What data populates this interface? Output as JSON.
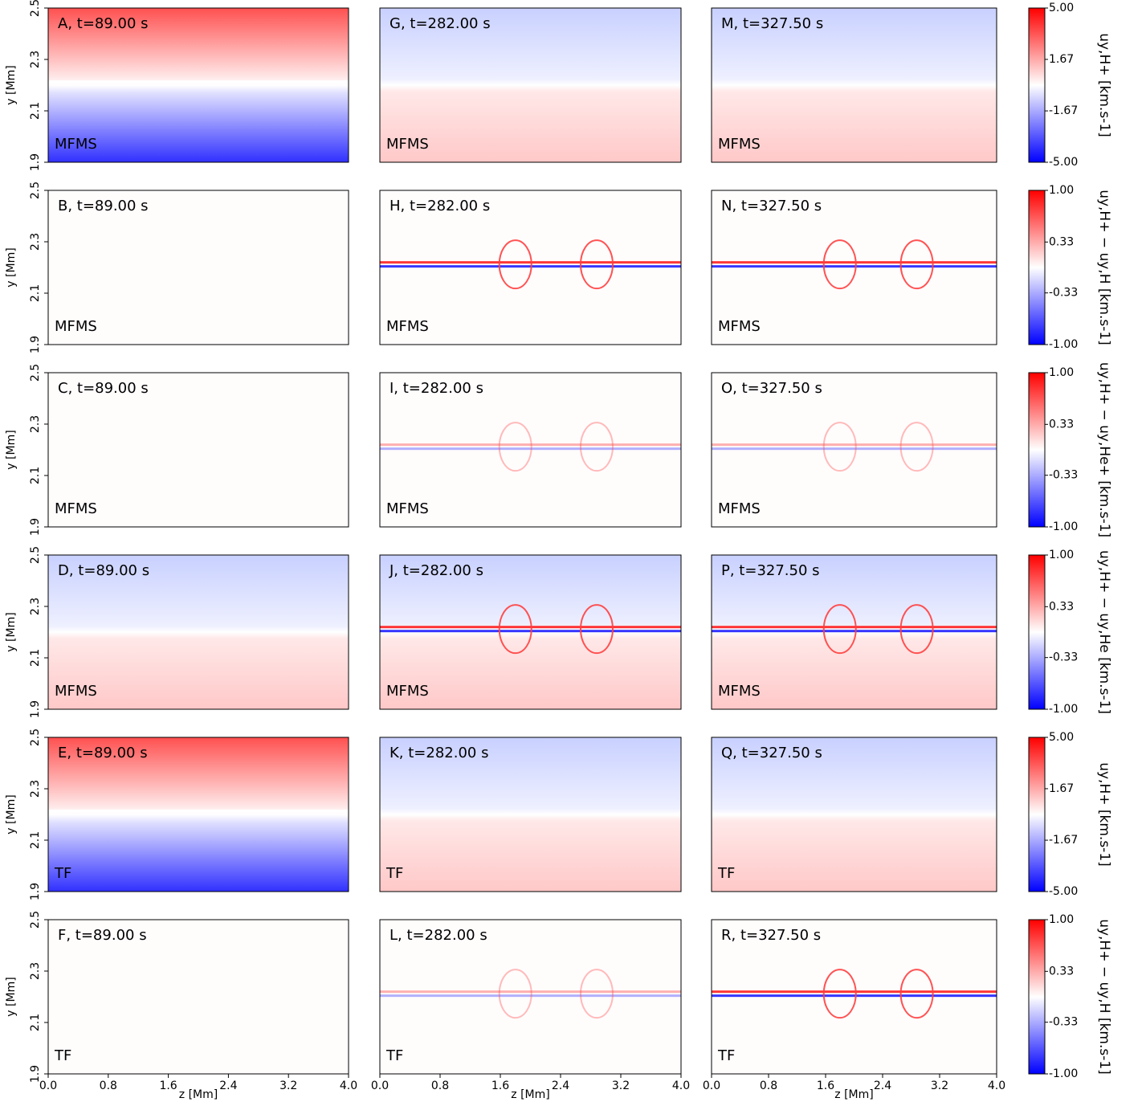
{
  "chart_data": [
    {
      "type": "heatmap",
      "title": "A, t=89.00 s",
      "annotation": "MFMS",
      "xlim": [
        0,
        4
      ],
      "ylim": [
        1.9,
        2.5
      ],
      "yticks": [
        1.9,
        2.1,
        2.3,
        2.5
      ],
      "ylabel": "y [Mm]"
    },
    {
      "type": "heatmap",
      "title": "B, t=89.00 s",
      "annotation": "MFMS",
      "xlim": [
        0,
        4
      ],
      "ylim": [
        1.9,
        2.5
      ],
      "yticks": [
        1.9,
        2.1,
        2.3,
        2.5
      ],
      "ylabel": "y [Mm]"
    },
    {
      "type": "heatmap",
      "title": "C, t=89.00 s",
      "annotation": "MFMS",
      "xlim": [
        0,
        4
      ],
      "ylim": [
        1.9,
        2.5
      ],
      "yticks": [
        1.9,
        2.1,
        2.3,
        2.5
      ],
      "ylabel": "y [Mm]"
    },
    {
      "type": "heatmap",
      "title": "D, t=89.00 s",
      "annotation": "MFMS",
      "xlim": [
        0,
        4
      ],
      "ylim": [
        1.9,
        2.5
      ],
      "yticks": [
        1.9,
        2.1,
        2.3,
        2.5
      ],
      "ylabel": "y [Mm]"
    },
    {
      "type": "heatmap",
      "title": "E, t=89.00 s",
      "annotation": "TF",
      "xlim": [
        0,
        4
      ],
      "ylim": [
        1.9,
        2.5
      ],
      "yticks": [
        1.9,
        2.1,
        2.3,
        2.5
      ],
      "ylabel": "y [Mm]"
    },
    {
      "type": "heatmap",
      "title": "F, t=89.00 s",
      "annotation": "TF",
      "xlim": [
        0,
        4
      ],
      "ylim": [
        1.9,
        2.5
      ],
      "yticks": [
        1.9,
        2.1,
        2.3,
        2.5
      ],
      "ylabel": "y [Mm]",
      "xticks": [
        {
          "value": 0,
          "label": "0.0"
        },
        0.8,
        1.6,
        2.4,
        3.2,
        {
          "value": 4,
          "label": "4.0"
        }
      ],
      "xlabel": "z [Mm]"
    },
    {
      "type": "heatmap",
      "title": "G, t=282.00 s",
      "annotation": "MFMS",
      "xlim": [
        0,
        4
      ],
      "ylim": [
        1.9,
        2.5
      ]
    },
    {
      "type": "heatmap",
      "title": "H, t=282.00 s",
      "annotation": "MFMS",
      "xlim": [
        0,
        4
      ],
      "ylim": [
        1.9,
        2.5
      ]
    },
    {
      "type": "heatmap",
      "title": "I, t=282.00 s",
      "annotation": "MFMS",
      "xlim": [
        0,
        4
      ],
      "ylim": [
        1.9,
        2.5
      ]
    },
    {
      "type": "heatmap",
      "title": "J, t=282.00 s",
      "annotation": "MFMS",
      "xlim": [
        0,
        4
      ],
      "ylim": [
        1.9,
        2.5
      ]
    },
    {
      "type": "heatmap",
      "title": "K, t=282.00 s",
      "annotation": "TF",
      "xlim": [
        0,
        4
      ],
      "ylim": [
        1.9,
        2.5
      ]
    },
    {
      "type": "heatmap",
      "title": "L, t=282.00 s",
      "annotation": "TF",
      "xlim": [
        0,
        4
      ],
      "ylim": [
        1.9,
        2.5
      ],
      "xticks": [
        {
          "value": 0,
          "label": "0.0"
        },
        0.8,
        1.6,
        2.4,
        3.2,
        {
          "value": 4,
          "label": "4.0"
        }
      ],
      "xlabel": "z [Mm]"
    },
    {
      "type": "heatmap",
      "title": "M, t=327.50 s",
      "annotation": "MFMS",
      "xlim": [
        0,
        4
      ],
      "ylim": [
        1.9,
        2.5
      ]
    },
    {
      "type": "heatmap",
      "title": "N, t=327.50 s",
      "annotation": "MFMS",
      "xlim": [
        0,
        4
      ],
      "ylim": [
        1.9,
        2.5
      ]
    },
    {
      "type": "heatmap",
      "title": "O, t=327.50 s",
      "annotation": "MFMS",
      "xlim": [
        0,
        4
      ],
      "ylim": [
        1.9,
        2.5
      ]
    },
    {
      "type": "heatmap",
      "title": "P, t=327.50 s",
      "annotation": "MFMS",
      "xlim": [
        0,
        4
      ],
      "ylim": [
        1.9,
        2.5
      ]
    },
    {
      "type": "heatmap",
      "title": "Q, t=327.50 s",
      "annotation": "TF",
      "xlim": [
        0,
        4
      ],
      "ylim": [
        1.9,
        2.5
      ]
    },
    {
      "type": "heatmap",
      "title": "R, t=327.50 s",
      "annotation": "TF",
      "xlim": [
        0,
        4
      ],
      "ylim": [
        1.9,
        2.5
      ],
      "xticks": [
        {
          "value": 0,
          "label": "0.0"
        },
        0.8,
        1.6,
        2.4,
        3.2,
        {
          "value": 4,
          "label": "4.0"
        }
      ],
      "xlabel": "z [Mm]"
    },
    {
      "type": "colorbar",
      "label": "uy,H+ [km.s-1]",
      "ylim": [
        -5,
        5
      ],
      "yticks": [
        {
          "value": -5,
          "label": "-5.00"
        },
        {
          "value": -1.67,
          "label": "-1.67"
        },
        {
          "value": 1.67,
          "label": "1.67"
        },
        {
          "value": 5,
          "label": "5.00"
        }
      ],
      "colors": [
        "#0000ff",
        "#ffffff",
        "#ff0000"
      ]
    },
    {
      "type": "colorbar",
      "label": "uy,H+ − uy,H [km.s-1]",
      "ylim": [
        -1,
        1
      ],
      "yticks": [
        {
          "value": -1,
          "label": "-1.00"
        },
        {
          "value": -0.33,
          "label": "-0.33"
        },
        {
          "value": 0.33,
          "label": "0.33"
        },
        {
          "value": 1,
          "label": "1.00"
        }
      ],
      "colors": [
        "#0000ff",
        "#ffffff",
        "#ff0000"
      ]
    },
    {
      "type": "colorbar",
      "label": "uy,H+ − uy,He+ [km.s-1]",
      "ylim": [
        -1,
        1
      ],
      "yticks": [
        {
          "value": -1,
          "label": "-1.00"
        },
        {
          "value": -0.33,
          "label": "-0.33"
        },
        {
          "value": 0.33,
          "label": "0.33"
        },
        {
          "value": 1,
          "label": "1.00"
        }
      ],
      "colors": [
        "#0000ff",
        "#ffffff",
        "#ff0000"
      ]
    },
    {
      "type": "colorbar",
      "label": "uy,H+ − uy,He [km.s-1]",
      "ylim": [
        -1,
        1
      ],
      "yticks": [
        {
          "value": -1,
          "label": "-1.00"
        },
        {
          "value": -0.33,
          "label": "-0.33"
        },
        {
          "value": 0.33,
          "label": "0.33"
        },
        {
          "value": 1,
          "label": "1.00"
        }
      ],
      "colors": [
        "#0000ff",
        "#ffffff",
        "#ff0000"
      ]
    },
    {
      "type": "colorbar",
      "label": "uy,H+ [km.s-1]",
      "ylim": [
        -5,
        5
      ],
      "yticks": [
        {
          "value": -5,
          "label": "-5.00"
        },
        {
          "value": -1.67,
          "label": "-1.67"
        },
        {
          "value": 1.67,
          "label": "1.67"
        },
        {
          "value": 5,
          "label": "5.00"
        }
      ],
      "colors": [
        "#0000ff",
        "#ffffff",
        "#ff0000"
      ]
    },
    {
      "type": "colorbar",
      "label": "uy,H+ − uy,H [km.s-1]",
      "ylim": [
        -1,
        1
      ],
      "yticks": [
        {
          "value": -1,
          "label": "-1.00"
        },
        {
          "value": -0.33,
          "label": "-0.33"
        },
        {
          "value": 0.33,
          "label": "0.33"
        },
        {
          "value": 1,
          "label": "1.00"
        }
      ],
      "colors": [
        "#0000ff",
        "#ffffff",
        "#ff0000"
      ]
    }
  ]
}
